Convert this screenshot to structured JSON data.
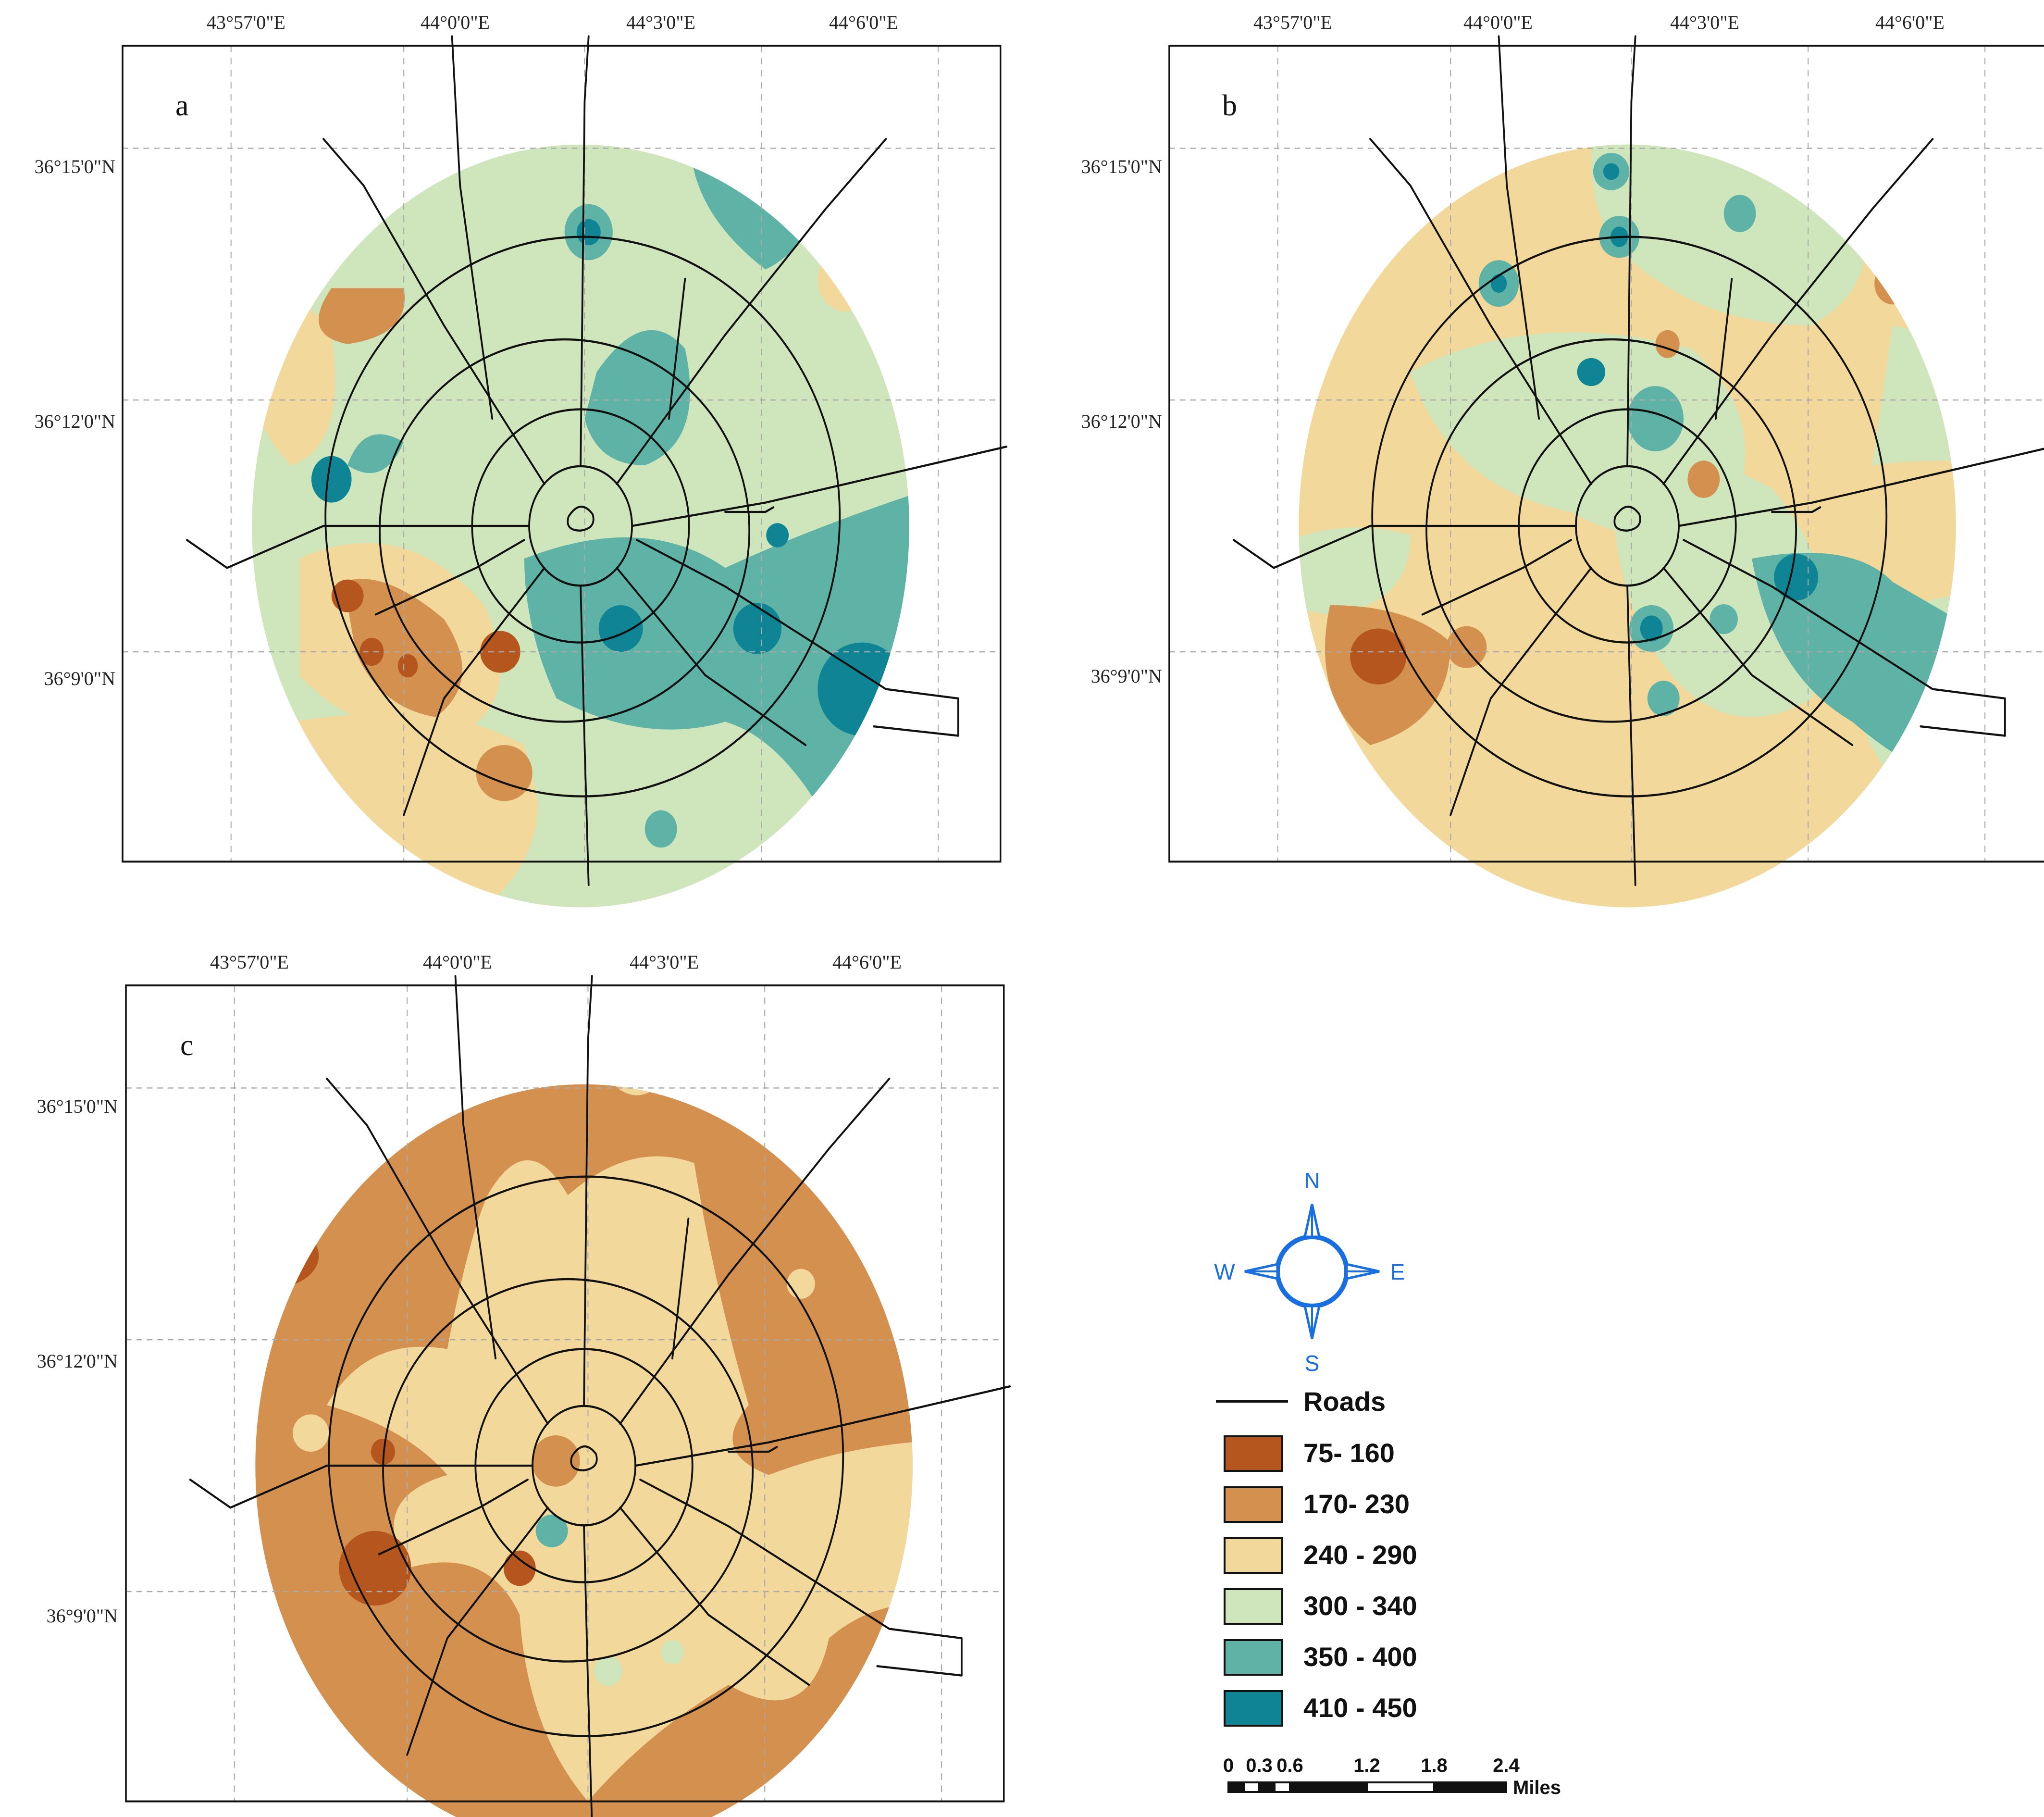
{
  "panels": [
    {
      "letter": "a",
      "lon_labels": [
        "43°57'0\"E",
        "44°0'0\"E",
        "44°3'0\"E",
        "44°6'0\"E"
      ],
      "lat_labels": [
        "36°15'0\"N",
        "36°12'0\"N",
        "36°9'0\"N"
      ]
    },
    {
      "letter": "b",
      "lon_labels": [
        "43°57'0\"E",
        "44°0'0\"E",
        "44°3'0\"E",
        "44°6'0\"E"
      ],
      "lat_labels": [
        "36°15'0\"N",
        "36°12'0\"N",
        "36°9'0\"N"
      ]
    },
    {
      "letter": "c",
      "lon_labels": [
        "43°57'0\"E",
        "44°0'0\"E",
        "44°3'0\"E",
        "44°6'0\"E"
      ],
      "lat_labels": [
        "36°15'0\"N",
        "36°12'0\"N",
        "36°9'0\"N"
      ]
    }
  ],
  "compass": {
    "north": "N",
    "south": "S",
    "east": "E",
    "west": "W",
    "color": "#1a6fe0"
  },
  "legend": {
    "roads_label": "Roads",
    "classes": [
      {
        "label": "75- 160",
        "color": "#b5561f"
      },
      {
        "label": "170- 230",
        "color": "#d4904f"
      },
      {
        "label": "240 - 290",
        "color": "#f2d89a"
      },
      {
        "label": "300 - 340",
        "color": "#cfe6bd"
      },
      {
        "label": "350 - 400",
        "color": "#5fb3a6"
      },
      {
        "label": "410 - 450",
        "color": "#0e8494"
      }
    ]
  },
  "scale_bar": {
    "ticks": [
      "0",
      "0.3",
      "0.6",
      "1.2",
      "1.8",
      "2.4"
    ],
    "unit": "Miles"
  }
}
